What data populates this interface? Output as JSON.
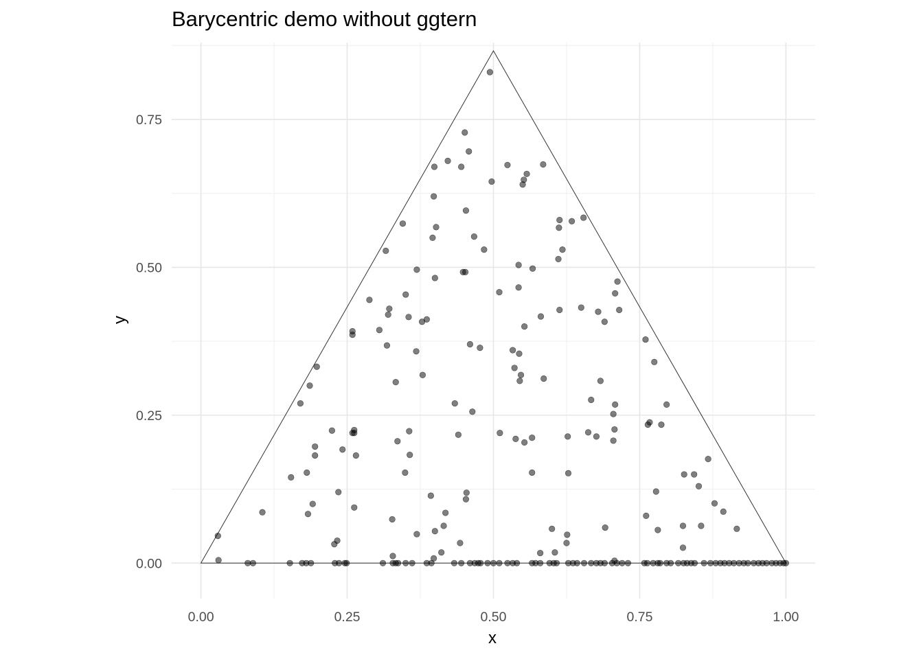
{
  "chart_data": {
    "type": "scatter",
    "title": "Barycentric demo without ggtern",
    "xlabel": "x",
    "ylabel": "y",
    "xlim": [
      -0.05,
      1.05
    ],
    "ylim": [
      -0.06,
      0.88
    ],
    "x_ticks": [
      0.0,
      0.25,
      0.5,
      0.75,
      1.0
    ],
    "x_tick_labels": [
      "0.00",
      "0.25",
      "0.50",
      "0.75",
      "1.00"
    ],
    "y_ticks": [
      0.0,
      0.25,
      0.5,
      0.75
    ],
    "y_tick_labels": [
      "0.00",
      "0.25",
      "0.50",
      "0.75"
    ],
    "grid": true,
    "triangle": [
      [
        0,
        0
      ],
      [
        1,
        0
      ],
      [
        0.5,
        0.866
      ]
    ],
    "point_color": "#000000",
    "point_alpha": 0.5,
    "line_color": "#333333",
    "points": [
      [
        0.494,
        0.83
      ],
      [
        0.451,
        0.728
      ],
      [
        0.458,
        0.696
      ],
      [
        0.422,
        0.68
      ],
      [
        0.445,
        0.67
      ],
      [
        0.399,
        0.67
      ],
      [
        0.524,
        0.673
      ],
      [
        0.585,
        0.674
      ],
      [
        0.557,
        0.658
      ],
      [
        0.552,
        0.648
      ],
      [
        0.55,
        0.64
      ],
      [
        0.497,
        0.645
      ],
      [
        0.398,
        0.62
      ],
      [
        0.453,
        0.596
      ],
      [
        0.654,
        0.584
      ],
      [
        0.634,
        0.578
      ],
      [
        0.613,
        0.58
      ],
      [
        0.612,
        0.567
      ],
      [
        0.345,
        0.574
      ],
      [
        0.402,
        0.568
      ],
      [
        0.396,
        0.55
      ],
      [
        0.467,
        0.552
      ],
      [
        0.484,
        0.53
      ],
      [
        0.316,
        0.528
      ],
      [
        0.618,
        0.53
      ],
      [
        0.611,
        0.514
      ],
      [
        0.369,
        0.496
      ],
      [
        0.448,
        0.492
      ],
      [
        0.452,
        0.492
      ],
      [
        0.543,
        0.504
      ],
      [
        0.567,
        0.498
      ],
      [
        0.4,
        0.482
      ],
      [
        0.712,
        0.476
      ],
      [
        0.708,
        0.456
      ],
      [
        0.35,
        0.454
      ],
      [
        0.51,
        0.458
      ],
      [
        0.543,
        0.466
      ],
      [
        0.288,
        0.445
      ],
      [
        0.322,
        0.43
      ],
      [
        0.32,
        0.42
      ],
      [
        0.355,
        0.416
      ],
      [
        0.386,
        0.412
      ],
      [
        0.378,
        0.408
      ],
      [
        0.613,
        0.428
      ],
      [
        0.65,
        0.432
      ],
      [
        0.679,
        0.425
      ],
      [
        0.715,
        0.428
      ],
      [
        0.581,
        0.417
      ],
      [
        0.69,
        0.408
      ],
      [
        0.553,
        0.4
      ],
      [
        0.259,
        0.392
      ],
      [
        0.259,
        0.386
      ],
      [
        0.305,
        0.394
      ],
      [
        0.318,
        0.368
      ],
      [
        0.368,
        0.358
      ],
      [
        0.46,
        0.37
      ],
      [
        0.477,
        0.364
      ],
      [
        0.533,
        0.36
      ],
      [
        0.544,
        0.354
      ],
      [
        0.76,
        0.378
      ],
      [
        0.775,
        0.34
      ],
      [
        0.536,
        0.33
      ],
      [
        0.198,
        0.332
      ],
      [
        0.379,
        0.318
      ],
      [
        0.547,
        0.318
      ],
      [
        0.586,
        0.312
      ],
      [
        0.545,
        0.308
      ],
      [
        0.333,
        0.306
      ],
      [
        0.683,
        0.308
      ],
      [
        0.186,
        0.3
      ],
      [
        0.667,
        0.276
      ],
      [
        0.17,
        0.27
      ],
      [
        0.434,
        0.27
      ],
      [
        0.796,
        0.268
      ],
      [
        0.708,
        0.268
      ],
      [
        0.705,
        0.252
      ],
      [
        0.464,
        0.256
      ],
      [
        0.787,
        0.234
      ],
      [
        0.767,
        0.238
      ],
      [
        0.764,
        0.234
      ],
      [
        0.707,
        0.226
      ],
      [
        0.224,
        0.224
      ],
      [
        0.262,
        0.225
      ],
      [
        0.262,
        0.22
      ],
      [
        0.259,
        0.22
      ],
      [
        0.356,
        0.223
      ],
      [
        0.511,
        0.22
      ],
      [
        0.662,
        0.221
      ],
      [
        0.44,
        0.217
      ],
      [
        0.627,
        0.214
      ],
      [
        0.676,
        0.214
      ],
      [
        0.566,
        0.212
      ],
      [
        0.538,
        0.21
      ],
      [
        0.705,
        0.207
      ],
      [
        0.336,
        0.206
      ],
      [
        0.553,
        0.204
      ],
      [
        0.195,
        0.197
      ],
      [
        0.242,
        0.192
      ],
      [
        0.195,
        0.182
      ],
      [
        0.265,
        0.182
      ],
      [
        0.357,
        0.183
      ],
      [
        0.867,
        0.176
      ],
      [
        0.349,
        0.153
      ],
      [
        0.181,
        0.153
      ],
      [
        0.154,
        0.145
      ],
      [
        0.566,
        0.153
      ],
      [
        0.628,
        0.152
      ],
      [
        0.826,
        0.15
      ],
      [
        0.843,
        0.15
      ],
      [
        0.851,
        0.13
      ],
      [
        0.778,
        0.121
      ],
      [
        0.235,
        0.12
      ],
      [
        0.454,
        0.119
      ],
      [
        0.453,
        0.108
      ],
      [
        0.393,
        0.114
      ],
      [
        0.191,
        0.1
      ],
      [
        0.878,
        0.101
      ],
      [
        0.183,
        0.083
      ],
      [
        0.262,
        0.094
      ],
      [
        0.105,
        0.086
      ],
      [
        0.893,
        0.087
      ],
      [
        0.418,
        0.085
      ],
      [
        0.327,
        0.074
      ],
      [
        0.761,
        0.08
      ],
      [
        0.415,
        0.063
      ],
      [
        0.6,
        0.058
      ],
      [
        0.691,
        0.06
      ],
      [
        0.824,
        0.063
      ],
      [
        0.855,
        0.063
      ],
      [
        0.916,
        0.058
      ],
      [
        0.781,
        0.056
      ],
      [
        0.4,
        0.054
      ],
      [
        0.369,
        0.049
      ],
      [
        0.626,
        0.048
      ],
      [
        0.029,
        0.046
      ],
      [
        0.233,
        0.038
      ],
      [
        0.228,
        0.032
      ],
      [
        0.443,
        0.034
      ],
      [
        0.625,
        0.034
      ],
      [
        0.824,
        0.026
      ],
      [
        0.411,
        0.018
      ],
      [
        0.605,
        0.018
      ],
      [
        0.58,
        0.017
      ],
      [
        0.328,
        0.012
      ],
      [
        0.398,
        0.008
      ],
      [
        0.03,
        0.005
      ],
      [
        0.707,
        0.004
      ],
      [
        0.08,
        0
      ],
      [
        0.089,
        0
      ],
      [
        0.152,
        0
      ],
      [
        0.173,
        0
      ],
      [
        0.18,
        0
      ],
      [
        0.188,
        0
      ],
      [
        0.229,
        0
      ],
      [
        0.236,
        0
      ],
      [
        0.246,
        0
      ],
      [
        0.249,
        0
      ],
      [
        0.311,
        0
      ],
      [
        0.328,
        0
      ],
      [
        0.333,
        0
      ],
      [
        0.337,
        0
      ],
      [
        0.35,
        0
      ],
      [
        0.361,
        0
      ],
      [
        0.386,
        0
      ],
      [
        0.394,
        0
      ],
      [
        0.433,
        0
      ],
      [
        0.445,
        0
      ],
      [
        0.46,
        0
      ],
      [
        0.468,
        0
      ],
      [
        0.474,
        0
      ],
      [
        0.478,
        0
      ],
      [
        0.49,
        0
      ],
      [
        0.5,
        0
      ],
      [
        0.51,
        0
      ],
      [
        0.524,
        0
      ],
      [
        0.533,
        0
      ],
      [
        0.54,
        0
      ],
      [
        0.566,
        0
      ],
      [
        0.572,
        0
      ],
      [
        0.58,
        0
      ],
      [
        0.596,
        0
      ],
      [
        0.603,
        0
      ],
      [
        0.608,
        0
      ],
      [
        0.628,
        0
      ],
      [
        0.636,
        0
      ],
      [
        0.643,
        0
      ],
      [
        0.655,
        0
      ],
      [
        0.667,
        0
      ],
      [
        0.676,
        0
      ],
      [
        0.683,
        0
      ],
      [
        0.69,
        0
      ],
      [
        0.703,
        0
      ],
      [
        0.711,
        0
      ],
      [
        0.72,
        0
      ],
      [
        0.73,
        0
      ],
      [
        0.758,
        0
      ],
      [
        0.763,
        0
      ],
      [
        0.773,
        0
      ],
      [
        0.781,
        0
      ],
      [
        0.785,
        0
      ],
      [
        0.796,
        0
      ],
      [
        0.803,
        0
      ],
      [
        0.816,
        0
      ],
      [
        0.825,
        0
      ],
      [
        0.831,
        0
      ],
      [
        0.838,
        0
      ],
      [
        0.844,
        0
      ],
      [
        0.86,
        0
      ],
      [
        0.871,
        0
      ],
      [
        0.88,
        0
      ],
      [
        0.888,
        0
      ],
      [
        0.895,
        0
      ],
      [
        0.903,
        0
      ],
      [
        0.911,
        0
      ],
      [
        0.92,
        0
      ],
      [
        0.928,
        0
      ],
      [
        0.935,
        0
      ],
      [
        0.945,
        0
      ],
      [
        0.953,
        0
      ],
      [
        0.96,
        0
      ],
      [
        0.967,
        0
      ],
      [
        0.976,
        0
      ],
      [
        0.983,
        0
      ],
      [
        0.99,
        0
      ],
      [
        0.996,
        0
      ],
      [
        1.0,
        0
      ]
    ]
  }
}
